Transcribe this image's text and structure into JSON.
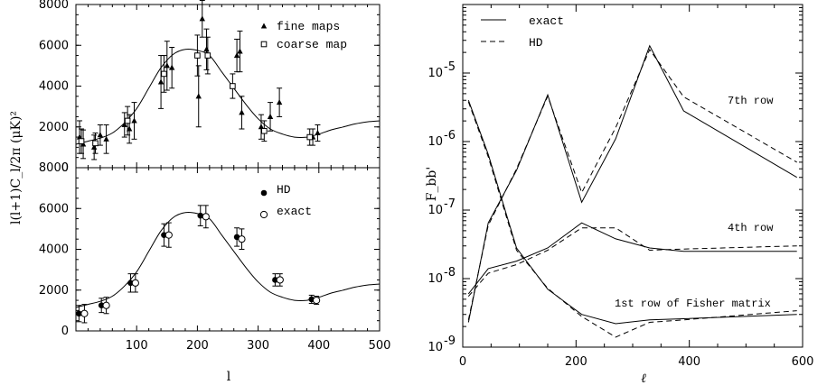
{
  "chart_data": [
    {
      "type": "scatter",
      "panel": "left-top",
      "ylabel": "l(l+1)C_l/2π  (μK)²",
      "xlim": [
        0,
        500
      ],
      "ylim": [
        0,
        8000
      ],
      "y_ticks": [
        "0",
        "2000",
        "4000",
        "6000",
        "8000"
      ],
      "grid": false,
      "legend_position": "top-right",
      "legend": [
        {
          "label": "fine maps",
          "marker": "triangle"
        },
        {
          "label": "coarse map",
          "marker": "open-square"
        }
      ],
      "model_curve": {
        "x": [
          0,
          20,
          40,
          60,
          80,
          100,
          120,
          140,
          160,
          180,
          200,
          220,
          240,
          260,
          280,
          300,
          320,
          340,
          360,
          380,
          400,
          420,
          440,
          460,
          480,
          500
        ],
        "y": [
          1150,
          1300,
          1450,
          1700,
          2200,
          2900,
          3900,
          4900,
          5550,
          5800,
          5750,
          5500,
          4700,
          3900,
          3100,
          2400,
          1900,
          1650,
          1500,
          1500,
          1650,
          1850,
          2000,
          2150,
          2250,
          2300
        ]
      },
      "series": [
        {
          "name": "fine maps",
          "points": [
            {
              "x": 6,
              "y": 1500,
              "err": 800
            },
            {
              "x": 12,
              "y": 1150,
              "err": 700
            },
            {
              "x": 30,
              "y": 1000,
              "err": 600
            },
            {
              "x": 40,
              "y": 1600,
              "err": 500
            },
            {
              "x": 50,
              "y": 1400,
              "err": 700
            },
            {
              "x": 80,
              "y": 2100,
              "err": 600
            },
            {
              "x": 88,
              "y": 1900,
              "err": 700
            },
            {
              "x": 96,
              "y": 2300,
              "err": 900
            },
            {
              "x": 140,
              "y": 4200,
              "err": 1300
            },
            {
              "x": 150,
              "y": 5000,
              "err": 1200
            },
            {
              "x": 158,
              "y": 4900,
              "err": 1000
            },
            {
              "x": 202,
              "y": 3500,
              "err": 1500
            },
            {
              "x": 208,
              "y": 7300,
              "err": 900
            },
            {
              "x": 215,
              "y": 5800,
              "err": 1000
            },
            {
              "x": 265,
              "y": 5500,
              "err": 800
            },
            {
              "x": 270,
              "y": 5700,
              "err": 1000
            },
            {
              "x": 273,
              "y": 2700,
              "err": 800
            },
            {
              "x": 305,
              "y": 2000,
              "err": 600
            },
            {
              "x": 320,
              "y": 2500,
              "err": 700
            },
            {
              "x": 335,
              "y": 3200,
              "err": 700
            },
            {
              "x": 390,
              "y": 1500,
              "err": 400
            },
            {
              "x": 398,
              "y": 1700,
              "err": 400
            }
          ]
        },
        {
          "name": "coarse map",
          "points": [
            {
              "x": 9,
              "y": 1300,
              "err": 600
            },
            {
              "x": 32,
              "y": 1200,
              "err": 500
            },
            {
              "x": 85,
              "y": 2300,
              "err": 700
            },
            {
              "x": 145,
              "y": 4600,
              "err": 900
            },
            {
              "x": 200,
              "y": 5500,
              "err": 1000
            },
            {
              "x": 217,
              "y": 5500,
              "err": 900
            },
            {
              "x": 258,
              "y": 4000,
              "err": 600
            },
            {
              "x": 310,
              "y": 1800,
              "err": 500
            },
            {
              "x": 385,
              "y": 1500,
              "err": 400
            }
          ]
        }
      ]
    },
    {
      "type": "scatter",
      "panel": "left-bottom",
      "xlabel": "l",
      "xlim": [
        0,
        500
      ],
      "ylim": [
        0,
        8000
      ],
      "x_ticks": [
        "100",
        "200",
        "300",
        "400",
        "500"
      ],
      "y_ticks": [
        "0",
        "2000",
        "4000",
        "6000",
        "8000"
      ],
      "grid": false,
      "legend_position": "top-right",
      "legend": [
        {
          "label": "HD",
          "marker": "filled-circle"
        },
        {
          "label": "exact",
          "marker": "open-circle"
        }
      ],
      "model_curve": {
        "x": [
          0,
          20,
          40,
          60,
          80,
          100,
          120,
          140,
          160,
          180,
          200,
          220,
          240,
          260,
          280,
          300,
          320,
          340,
          360,
          380,
          400,
          420,
          440,
          460,
          480,
          500
        ],
        "y": [
          1150,
          1300,
          1450,
          1700,
          2200,
          2900,
          3900,
          4900,
          5550,
          5800,
          5750,
          5500,
          4700,
          3900,
          3100,
          2400,
          1900,
          1650,
          1500,
          1500,
          1650,
          1850,
          2000,
          2150,
          2250,
          2300
        ]
      },
      "series": [
        {
          "name": "HD",
          "points": [
            {
              "x": 5,
              "y": 850,
              "err": 400
            },
            {
              "x": 42,
              "y": 1250,
              "err": 350
            },
            {
              "x": 90,
              "y": 2350,
              "err": 450
            },
            {
              "x": 145,
              "y": 4700,
              "err": 550
            },
            {
              "x": 205,
              "y": 5650,
              "err": 500
            },
            {
              "x": 265,
              "y": 4600,
              "err": 450
            },
            {
              "x": 328,
              "y": 2500,
              "err": 300
            },
            {
              "x": 388,
              "y": 1550,
              "err": 200
            }
          ]
        },
        {
          "name": "exact",
          "points": [
            {
              "x": 14,
              "y": 850,
              "err": 450
            },
            {
              "x": 50,
              "y": 1250,
              "err": 400
            },
            {
              "x": 98,
              "y": 2350,
              "err": 450
            },
            {
              "x": 153,
              "y": 4700,
              "err": 600
            },
            {
              "x": 214,
              "y": 5600,
              "err": 550
            },
            {
              "x": 273,
              "y": 4500,
              "err": 500
            },
            {
              "x": 336,
              "y": 2500,
              "err": 300
            },
            {
              "x": 396,
              "y": 1500,
              "err": 200
            }
          ]
        }
      ]
    },
    {
      "type": "line",
      "panel": "right",
      "xlabel": "ℓ",
      "ylabel": "F_bb'",
      "yscale": "log",
      "xlim": [
        0,
        600
      ],
      "ylim": [
        1e-09,
        0.0001
      ],
      "x_ticks": [
        "0",
        "200",
        "400",
        "600"
      ],
      "y_ticks": [
        {
          "base": "10",
          "exp": "-9"
        },
        {
          "base": "10",
          "exp": "-8"
        },
        {
          "base": "10",
          "exp": "-7"
        },
        {
          "base": "10",
          "exp": "-6"
        },
        {
          "base": "10",
          "exp": "-5"
        }
      ],
      "grid": false,
      "legend_position": "top-left",
      "legend": [
        {
          "label": "exact",
          "style": "solid"
        },
        {
          "label": "HD",
          "style": "dashed"
        }
      ],
      "annotations": [
        "7th row",
        "4th row",
        "1st row of Fisher matrix"
      ],
      "x": [
        10,
        45,
        95,
        150,
        210,
        270,
        330,
        390,
        590
      ],
      "series": [
        {
          "name": "exact",
          "row": "1st",
          "values": [
            4e-06,
            6.5e-07,
            2.8e-08,
            7e-09,
            3e-09,
            2.2e-09,
            2.5e-09,
            2.6e-09,
            3e-09
          ]
        },
        {
          "name": "HD",
          "row": "1st",
          "values": [
            3.8e-06,
            6e-07,
            2.6e-08,
            7.2e-09,
            2.8e-09,
            1.4e-09,
            2.3e-09,
            2.5e-09,
            3.4e-09
          ]
        },
        {
          "name": "exact",
          "row": "4th",
          "values": [
            6e-09,
            1.4e-08,
            1.8e-08,
            2.8e-08,
            6.5e-08,
            3.8e-08,
            2.8e-08,
            2.5e-08,
            2.5e-08
          ]
        },
        {
          "name": "HD",
          "row": "4th",
          "values": [
            5.5e-09,
            1.2e-08,
            1.6e-08,
            2.6e-08,
            5.5e-08,
            5.5e-08,
            2.6e-08,
            2.7e-08,
            3e-08
          ]
        },
        {
          "name": "exact",
          "row": "7th",
          "values": [
            2.3e-09,
            6.5e-08,
            3.8e-07,
            4.8e-06,
            1.3e-07,
            1.1e-06,
            2.5e-05,
            2.8e-06,
            3e-07
          ]
        },
        {
          "name": "HD",
          "row": "7th",
          "values": [
            2.5e-09,
            6e-08,
            4e-07,
            4.6e-06,
            1.8e-07,
            1.6e-06,
            2.2e-05,
            4.5e-06,
            5e-07
          ]
        }
      ]
    }
  ]
}
